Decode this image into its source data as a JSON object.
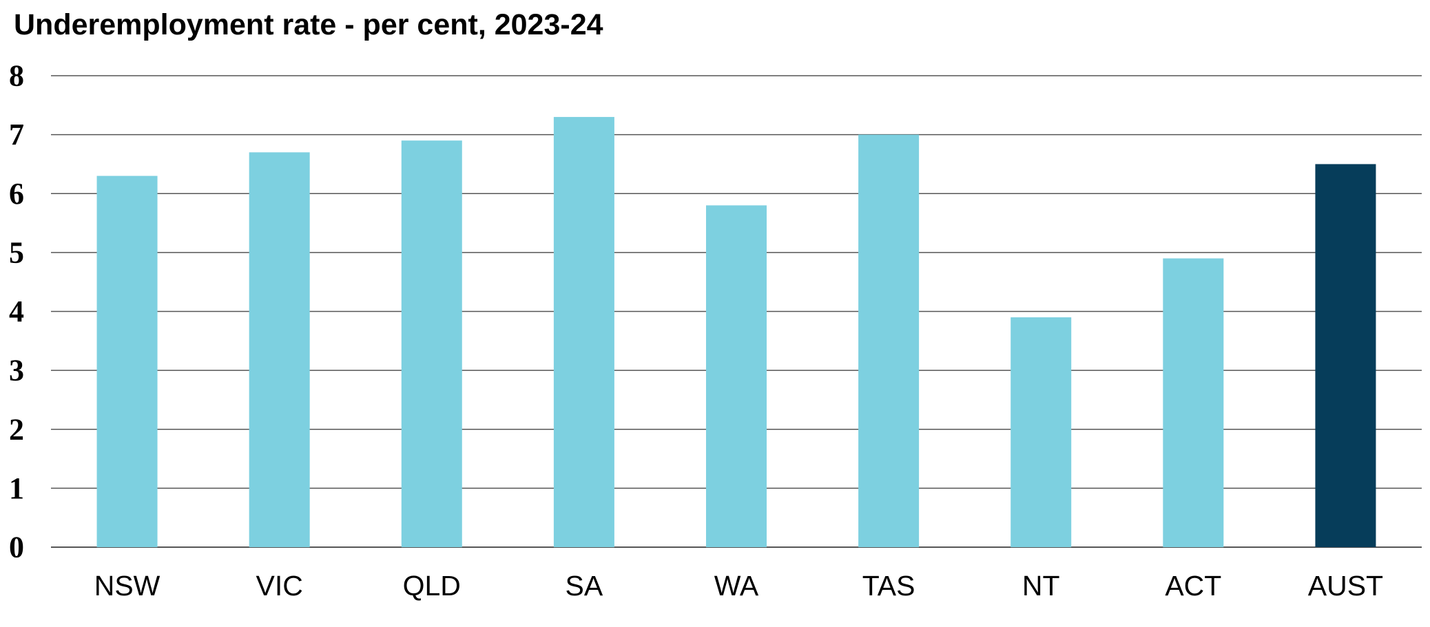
{
  "chart_data": {
    "type": "bar",
    "title": "Underemployment rate - per cent, 2023-24",
    "xlabel": "",
    "ylabel": "",
    "categories": [
      "NSW",
      "VIC",
      "QLD",
      "SA",
      "WA",
      "TAS",
      "NT",
      "ACT",
      "AUST"
    ],
    "values": [
      6.3,
      6.7,
      6.9,
      7.3,
      5.8,
      7.0,
      3.9,
      4.9,
      6.5
    ],
    "ylim": [
      0,
      8
    ],
    "yticks": [
      0,
      1,
      2,
      3,
      4,
      5,
      6,
      7,
      8
    ],
    "grid": true,
    "legend": "none",
    "colors": {
      "bar": "#7dd0e0",
      "highlight_bar": "#063d5a",
      "gridline": "#555555",
      "axis_text": "#000000"
    },
    "highlight_category": "AUST"
  }
}
